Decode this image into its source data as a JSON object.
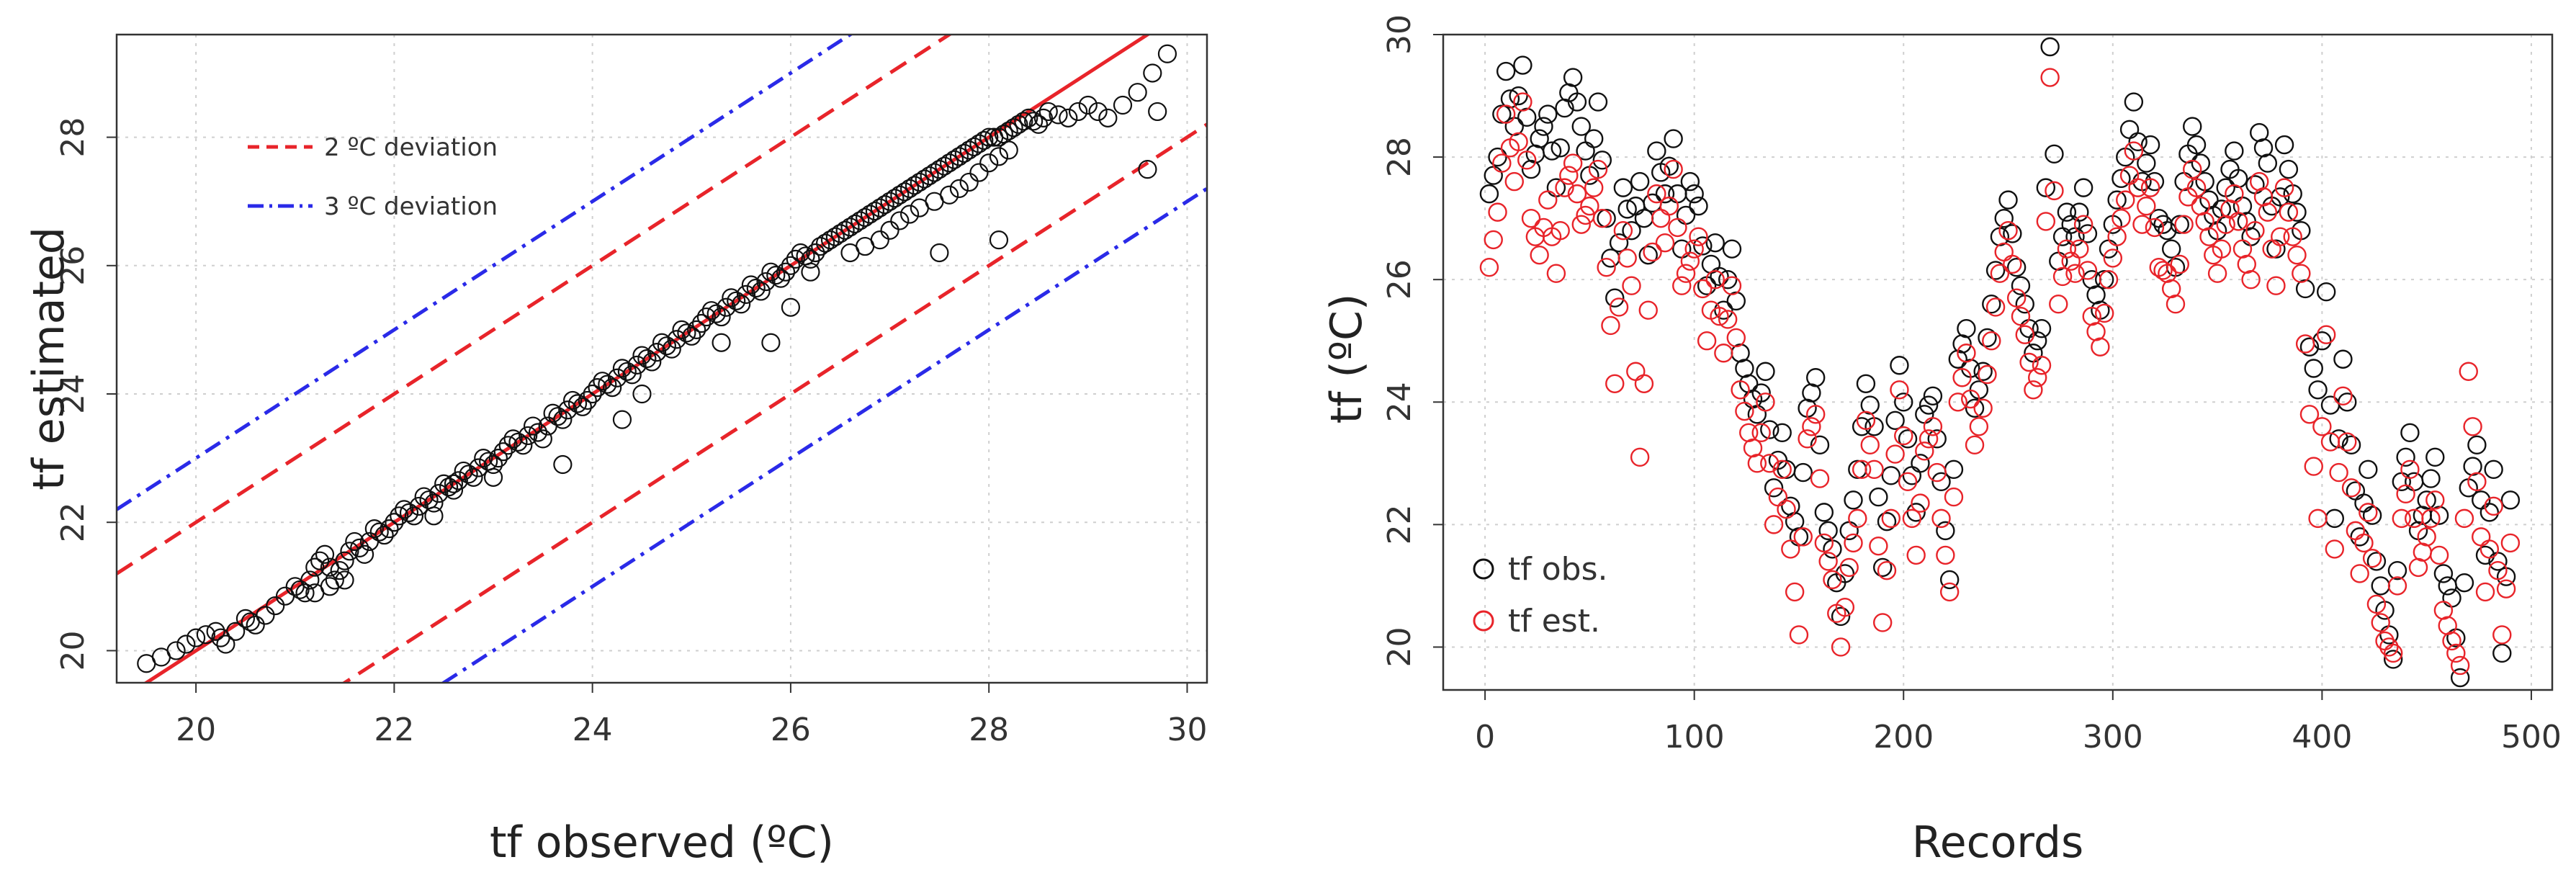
{
  "chart_data": [
    {
      "type": "scatter",
      "title": "",
      "xlabel": "tf observed (ºC)",
      "ylabel": "tf estimated",
      "xlim": [
        19.2,
        30.2
      ],
      "ylim": [
        19.5,
        29.6
      ],
      "xticks": [
        20,
        22,
        24,
        26,
        28,
        30
      ],
      "yticks": [
        20,
        22,
        24,
        26,
        28
      ],
      "grid": true,
      "legend": {
        "placement": "top-left",
        "entries": [
          {
            "label": "2 ºC deviation",
            "color": "#e8242a",
            "style": "dashed"
          },
          {
            "label": "3 ºC deviation",
            "color": "#2a2ae8",
            "style": "dash-dot"
          }
        ]
      },
      "lines": [
        {
          "name": "1:1 line",
          "slope": 1,
          "offset": 0,
          "color": "#e8242a",
          "style": "solid"
        },
        {
          "name": "+2 ºC",
          "slope": 1,
          "offset": 2,
          "color": "#e8242a",
          "style": "dashed"
        },
        {
          "name": "-2 ºC",
          "slope": 1,
          "offset": -2,
          "color": "#e8242a",
          "style": "dashed"
        },
        {
          "name": "+3 ºC",
          "slope": 1,
          "offset": 3,
          "color": "#2a2ae8",
          "style": "dash-dot"
        },
        {
          "name": "-3 ºC",
          "slope": 1,
          "offset": -3,
          "color": "#2a2ae8",
          "style": "dash-dot"
        }
      ],
      "series": [
        {
          "name": "observed vs estimated",
          "color": "#111111",
          "points": [
            [
              19.5,
              19.8
            ],
            [
              19.8,
              20.0
            ],
            [
              20.0,
              20.2
            ],
            [
              20.2,
              20.3
            ],
            [
              20.3,
              20.1
            ],
            [
              20.5,
              20.5
            ],
            [
              20.6,
              20.4
            ],
            [
              20.8,
              20.7
            ],
            [
              21.0,
              21.0
            ],
            [
              21.1,
              20.9
            ],
            [
              21.2,
              21.3
            ],
            [
              21.3,
              21.5
            ],
            [
              21.4,
              21.1
            ],
            [
              21.5,
              21.4
            ],
            [
              21.6,
              21.7
            ],
            [
              21.7,
              21.5
            ],
            [
              21.8,
              21.9
            ],
            [
              21.9,
              21.8
            ],
            [
              22.0,
              22.0
            ],
            [
              22.1,
              22.2
            ],
            [
              22.2,
              22.1
            ],
            [
              22.3,
              22.4
            ],
            [
              22.4,
              22.3
            ],
            [
              22.5,
              22.6
            ],
            [
              22.6,
              22.5
            ],
            [
              22.7,
              22.8
            ],
            [
              22.8,
              22.7
            ],
            [
              22.9,
              23.0
            ],
            [
              23.0,
              22.9
            ],
            [
              23.1,
              23.1
            ],
            [
              23.2,
              23.3
            ],
            [
              23.3,
              23.2
            ],
            [
              23.4,
              23.5
            ],
            [
              23.5,
              23.3
            ],
            [
              23.6,
              23.7
            ],
            [
              23.7,
              23.6
            ],
            [
              23.8,
              23.9
            ],
            [
              23.9,
              23.8
            ],
            [
              24.0,
              24.0
            ],
            [
              24.1,
              24.2
            ],
            [
              24.2,
              24.1
            ],
            [
              24.3,
              24.4
            ],
            [
              24.4,
              24.3
            ],
            [
              24.5,
              24.6
            ],
            [
              24.6,
              24.5
            ],
            [
              24.7,
              24.8
            ],
            [
              24.8,
              24.7
            ],
            [
              24.9,
              25.0
            ],
            [
              25.0,
              24.9
            ],
            [
              25.1,
              25.1
            ],
            [
              25.2,
              25.3
            ],
            [
              25.3,
              25.2
            ],
            [
              25.4,
              25.5
            ],
            [
              25.5,
              25.4
            ],
            [
              25.6,
              25.7
            ],
            [
              25.7,
              25.6
            ],
            [
              25.8,
              25.9
            ],
            [
              25.9,
              25.8
            ],
            [
              26.0,
              26.0
            ],
            [
              26.1,
              26.2
            ],
            [
              26.2,
              26.1
            ],
            [
              26.3,
              26.3
            ],
            [
              26.4,
              26.4
            ],
            [
              26.5,
              26.5
            ],
            [
              26.6,
              26.6
            ],
            [
              26.7,
              26.7
            ],
            [
              26.8,
              26.8
            ],
            [
              26.9,
              26.9
            ],
            [
              27.0,
              27.0
            ],
            [
              27.1,
              27.1
            ],
            [
              27.2,
              27.2
            ],
            [
              27.3,
              27.3
            ],
            [
              27.4,
              27.4
            ],
            [
              27.5,
              27.5
            ],
            [
              27.6,
              27.6
            ],
            [
              27.7,
              27.7
            ],
            [
              27.8,
              27.8
            ],
            [
              27.9,
              27.9
            ],
            [
              28.0,
              28.0
            ],
            [
              28.1,
              28.0
            ],
            [
              28.2,
              28.1
            ],
            [
              28.3,
              28.2
            ],
            [
              28.4,
              28.3
            ],
            [
              28.5,
              28.2
            ],
            [
              28.6,
              28.4
            ],
            [
              28.8,
              28.3
            ],
            [
              29.0,
              28.5
            ],
            [
              29.2,
              28.3
            ],
            [
              29.5,
              28.7
            ],
            [
              29.8,
              29.3
            ],
            [
              29.6,
              27.5
            ],
            [
              28.1,
              26.4
            ],
            [
              27.5,
              26.2
            ],
            [
              26.2,
              25.9
            ],
            [
              25.8,
              24.8
            ],
            [
              24.3,
              23.6
            ],
            [
              23.7,
              22.9
            ],
            [
              22.6,
              22.6
            ],
            [
              21.5,
              21.1
            ],
            [
              21.2,
              20.9
            ],
            [
              22.4,
              22.1
            ],
            [
              23.0,
              22.7
            ],
            [
              24.5,
              24.0
            ],
            [
              25.3,
              24.8
            ],
            [
              26.6,
              26.2
            ],
            [
              26.9,
              26.4
            ],
            [
              27.1,
              26.7
            ],
            [
              27.3,
              26.9
            ],
            [
              27.6,
              27.1
            ],
            [
              27.8,
              27.3
            ],
            [
              28.0,
              27.6
            ],
            [
              28.2,
              27.8
            ]
          ]
        }
      ]
    },
    {
      "type": "scatter",
      "title": "",
      "xlabel": "Records",
      "ylabel": "tf (ºC)",
      "xlim": [
        -20,
        510
      ],
      "ylim": [
        19.3,
        30.0
      ],
      "xticks": [
        0,
        100,
        200,
        300,
        400,
        500
      ],
      "yticks": [
        20,
        22,
        24,
        26,
        28,
        30
      ],
      "grid": true,
      "legend": {
        "placement": "bottom-left",
        "entries": [
          {
            "label": "tf obs.",
            "color": "#111111",
            "marker": "circle"
          },
          {
            "label": "tf est.",
            "color": "#e8242a",
            "marker": "circle"
          }
        ]
      },
      "series": [
        {
          "name": "tf obs.",
          "color": "#111111",
          "x": [
            2,
            6,
            10,
            14,
            18,
            22,
            26,
            30,
            34,
            38,
            42,
            46,
            50,
            54,
            58,
            62,
            66,
            70,
            74,
            78,
            82,
            86,
            90,
            94,
            98,
            102,
            106,
            110,
            114,
            118,
            122,
            126,
            130,
            134,
            138,
            142,
            146,
            150,
            154,
            158,
            162,
            166,
            170,
            174,
            178,
            182,
            186,
            190,
            194,
            198,
            202,
            206,
            210,
            214,
            218,
            222,
            226,
            230,
            234,
            238,
            242,
            246,
            250,
            254,
            258,
            262,
            266,
            270,
            274,
            278,
            282,
            286,
            290,
            294,
            298,
            302,
            306,
            310,
            314,
            318,
            322,
            326,
            330,
            334,
            338,
            342,
            346,
            350,
            354,
            358,
            362,
            366,
            370,
            374,
            378,
            382,
            386,
            390,
            394,
            398,
            402,
            406,
            410,
            414,
            418,
            422,
            426,
            430,
            434,
            438,
            442,
            446,
            450,
            454,
            458,
            462,
            466,
            470,
            474,
            478,
            482,
            486,
            490
          ],
          "y": [
            27.4,
            28.0,
            29.4,
            28.5,
            29.5,
            27.8,
            28.3,
            28.7,
            27.5,
            28.8,
            29.3,
            28.5,
            27.7,
            28.9,
            27.0,
            25.7,
            27.5,
            26.8,
            27.6,
            26.4,
            28.1,
            27.4,
            28.3,
            26.5,
            27.6,
            27.2,
            25.9,
            26.6,
            25.5,
            26.5,
            24.8,
            24.3,
            23.8,
            24.5,
            22.6,
            23.5,
            22.3,
            21.8,
            23.9,
            24.4,
            22.2,
            21.6,
            20.5,
            21.9,
            22.9,
            24.3,
            23.6,
            21.3,
            22.8,
            24.6,
            23.4,
            22.2,
            23.8,
            24.1,
            22.7,
            21.1,
            24.7,
            25.2,
            23.9,
            24.5,
            25.6,
            26.7,
            27.3,
            26.2,
            25.6,
            24.8,
            25.2,
            29.8,
            26.3,
            27.1,
            26.7,
            27.5,
            26.0,
            25.5,
            26.5,
            27.3,
            28.0,
            28.9,
            27.6,
            28.2,
            27.0,
            26.8,
            26.2,
            27.6,
            28.5,
            27.9,
            27.3,
            26.8,
            27.5,
            28.1,
            27.2,
            26.7,
            28.4,
            27.9,
            26.5,
            28.2,
            27.4,
            26.8,
            24.9,
            24.2,
            25.8,
            22.1,
            24.7,
            23.3,
            21.8,
            22.9,
            21.4,
            20.6,
            19.8,
            22.7,
            23.5,
            21.9,
            22.4,
            23.1,
            21.2,
            20.8,
            19.5,
            22.6,
            23.3,
            21.5,
            22.9,
            19.9,
            22.4
          ]
        },
        {
          "name": "tf est.",
          "color": "#e8242a",
          "x": [
            2,
            6,
            10,
            14,
            18,
            22,
            26,
            30,
            34,
            38,
            42,
            46,
            50,
            54,
            58,
            62,
            66,
            70,
            74,
            78,
            82,
            86,
            90,
            94,
            98,
            102,
            106,
            110,
            114,
            118,
            122,
            126,
            130,
            134,
            138,
            142,
            146,
            150,
            154,
            158,
            162,
            166,
            170,
            174,
            178,
            182,
            186,
            190,
            194,
            198,
            202,
            206,
            210,
            214,
            218,
            222,
            226,
            230,
            234,
            238,
            242,
            246,
            250,
            254,
            258,
            262,
            266,
            270,
            274,
            278,
            282,
            286,
            290,
            294,
            298,
            302,
            306,
            310,
            314,
            318,
            322,
            326,
            330,
            334,
            338,
            342,
            346,
            350,
            354,
            358,
            362,
            366,
            370,
            374,
            378,
            382,
            386,
            390,
            394,
            398,
            402,
            406,
            410,
            414,
            418,
            422,
            426,
            430,
            434,
            438,
            442,
            446,
            450,
            454,
            458,
            462,
            466,
            470,
            474,
            478,
            482,
            486,
            490
          ],
          "y": [
            26.2,
            27.1,
            28.7,
            27.6,
            28.9,
            27.0,
            26.4,
            27.3,
            26.1,
            27.5,
            27.9,
            26.9,
            27.2,
            27.8,
            26.2,
            24.3,
            26.8,
            25.9,
            23.1,
            25.5,
            27.4,
            26.6,
            27.8,
            25.9,
            26.3,
            26.7,
            25.0,
            26.0,
            24.8,
            25.9,
            24.2,
            23.5,
            23.0,
            24.0,
            22.0,
            22.9,
            21.6,
            20.2,
            23.4,
            23.8,
            21.7,
            21.1,
            20.0,
            21.3,
            22.1,
            23.7,
            22.9,
            20.4,
            22.1,
            24.2,
            22.7,
            21.5,
            23.2,
            23.6,
            22.1,
            20.9,
            24.0,
            24.8,
            23.3,
            23.9,
            25.0,
            26.1,
            26.8,
            25.7,
            25.1,
            24.2,
            24.6,
            29.3,
            25.6,
            26.5,
            26.1,
            26.9,
            25.4,
            24.9,
            26.0,
            26.7,
            27.3,
            28.1,
            26.9,
            27.5,
            26.2,
            26.1,
            25.6,
            26.9,
            27.8,
            27.2,
            26.7,
            26.1,
            26.9,
            27.4,
            26.5,
            26.0,
            27.6,
            27.1,
            25.9,
            27.5,
            26.7,
            26.1,
            23.8,
            22.1,
            25.1,
            21.6,
            24.1,
            22.6,
            21.2,
            22.2,
            20.7,
            20.1,
            19.9,
            22.1,
            22.9,
            21.3,
            21.8,
            22.4,
            20.6,
            20.1,
            19.7,
            24.5,
            22.7,
            20.9,
            22.3,
            20.2,
            21.7
          ]
        }
      ]
    }
  ]
}
